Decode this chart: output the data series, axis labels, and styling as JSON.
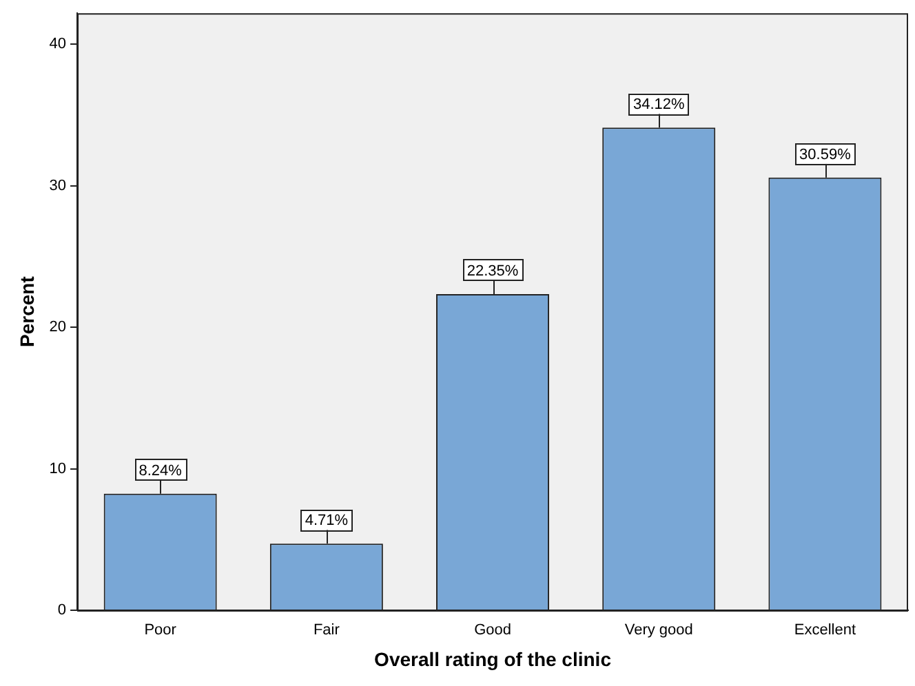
{
  "chart_data": {
    "type": "bar",
    "xlabel": "Overall rating of the clinic",
    "ylabel": "Percent",
    "categories": [
      "Poor",
      "Fair",
      "Good",
      "Very good",
      "Excellent"
    ],
    "values": [
      8.24,
      4.71,
      22.35,
      34.12,
      30.59
    ],
    "value_labels": [
      "8.24%",
      "4.71%",
      "22.35%",
      "34.12%",
      "30.59%"
    ],
    "color": "#79a7d6",
    "ylim": [
      0,
      42.2
    ],
    "yticks": [
      0,
      10,
      20,
      30,
      40
    ],
    "grid": false,
    "legend": false
  }
}
